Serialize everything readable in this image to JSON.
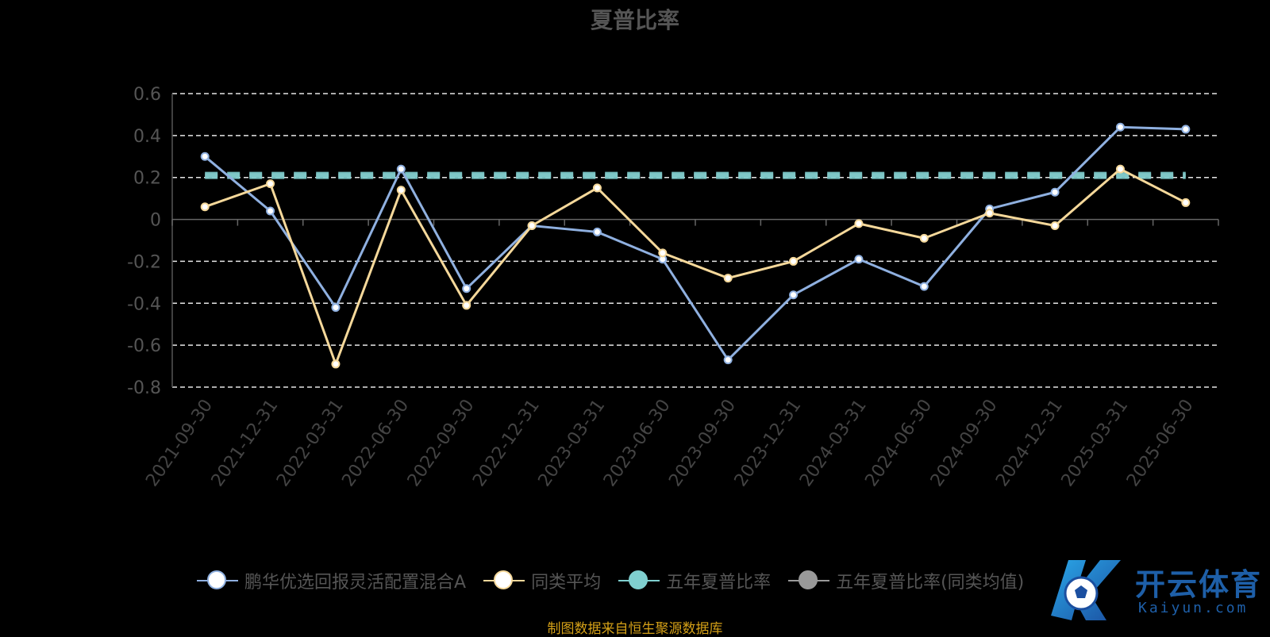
{
  "chart_data": {
    "type": "line",
    "title": "夏普比率",
    "categories": [
      "2021-09-30",
      "2021-12-31",
      "2022-03-31",
      "2022-06-30",
      "2022-09-30",
      "2022-12-31",
      "2023-03-31",
      "2023-06-30",
      "2023-09-30",
      "2023-12-31",
      "2024-03-31",
      "2024-06-30",
      "2024-09-30",
      "2024-12-31",
      "2025-03-31",
      "2025-06-30"
    ],
    "ylim": [
      -0.8,
      0.6
    ],
    "yticks": [
      0.6,
      0.4,
      0.2,
      0,
      -0.2,
      -0.4,
      -0.6,
      -0.8
    ],
    "ytick_labels": [
      "0.6",
      "0.4",
      "0.2",
      "0",
      "-0.2",
      "-0.4",
      "-0.6",
      "-0.8"
    ],
    "grid": true,
    "legend_position": "bottom",
    "series": [
      {
        "name": "鹏华优选回报灵活配置混合A",
        "color": "#8fb0e0",
        "values": [
          0.3,
          0.04,
          -0.42,
          0.24,
          -0.33,
          -0.03,
          -0.06,
          -0.19,
          -0.67,
          -0.36,
          -0.19,
          -0.32,
          0.05,
          0.13,
          0.44,
          0.43
        ]
      },
      {
        "name": "同类平均",
        "color": "#f5d89a",
        "values": [
          0.06,
          0.17,
          -0.69,
          0.14,
          -0.41,
          -0.03,
          0.15,
          -0.16,
          -0.28,
          -0.2,
          -0.02,
          -0.09,
          0.03,
          -0.03,
          0.24,
          0.08
        ]
      },
      {
        "name": "五年夏普比率",
        "color": "#7fcfcf",
        "style": "dashed",
        "values": [
          0.21,
          0.21,
          0.21,
          0.21,
          0.21,
          0.21,
          0.21,
          0.21,
          0.21,
          0.21,
          0.21,
          0.21,
          0.21,
          0.21,
          0.21,
          0.21
        ]
      },
      {
        "name": "五年夏普比率(同类均值)",
        "color": "#999999",
        "style": "dashed",
        "values": [
          0.21,
          0.21,
          0.21,
          0.21,
          0.21,
          0.21,
          0.21,
          0.21,
          0.21,
          0.21,
          0.21,
          0.21,
          0.21,
          0.21,
          0.21,
          0.21
        ]
      }
    ]
  },
  "legend": {
    "items": [
      {
        "label": "鹏华优选回报灵活配置混合A",
        "color": "#8fb0e0",
        "dot_fill": "#ffffff"
      },
      {
        "label": "同类平均",
        "color": "#f5d89a",
        "dot_fill": "#ffffff"
      },
      {
        "label": "五年夏普比率",
        "color": "#7fcfcf",
        "dot_fill": "#7fcfcf"
      },
      {
        "label": "五年夏普比率(同类均值)",
        "color": "#999999",
        "dot_fill": "#999999"
      }
    ]
  },
  "source_note": "制图数据来自恒生聚源数据库",
  "watermark": {
    "brand": "开云体育",
    "domain": "Kaiyun.com"
  }
}
